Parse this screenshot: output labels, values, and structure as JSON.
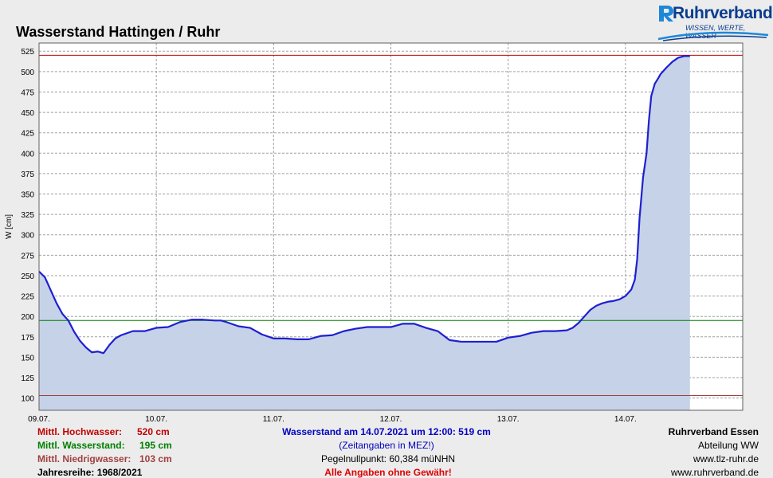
{
  "title": "Wasserstand Hattingen / Ruhr",
  "logo": {
    "name": "Ruhrverband",
    "tagline": "WISSEN, WERTE, WASSER"
  },
  "chart_data": {
    "type": "area",
    "ylabel": "W [cm]",
    "ylim": [
      85,
      535
    ],
    "yticks": [
      100,
      125,
      150,
      175,
      200,
      225,
      250,
      275,
      300,
      325,
      350,
      375,
      400,
      425,
      450,
      475,
      500,
      525
    ],
    "xlim": [
      0,
      6
    ],
    "xticks": [
      {
        "x": 0,
        "label": "09.07."
      },
      {
        "x": 1,
        "label": "10.07."
      },
      {
        "x": 2,
        "label": "11.07."
      },
      {
        "x": 3,
        "label": "12.07."
      },
      {
        "x": 4,
        "label": "13.07."
      },
      {
        "x": 5,
        "label": "14.07."
      }
    ],
    "grid": true,
    "reference_lines": [
      {
        "name": "Mittl. Hochwasser",
        "value": 520,
        "color": "#c00000"
      },
      {
        "name": "Mittl. Wasserstand",
        "value": 195,
        "color": "#008000"
      },
      {
        "name": "Mittl. Niedrigwasser",
        "value": 103,
        "color": "#a04040"
      }
    ],
    "series": [
      {
        "color": "#1f1fd0",
        "fill": "#c5d2e8",
        "x": [
          0,
          0.05,
          0.1,
          0.15,
          0.2,
          0.25,
          0.3,
          0.35,
          0.4,
          0.45,
          0.5,
          0.55,
          0.6,
          0.65,
          0.7,
          0.8,
          0.9,
          1.0,
          1.1,
          1.2,
          1.3,
          1.4,
          1.5,
          1.55,
          1.6,
          1.7,
          1.8,
          1.9,
          2.0,
          2.1,
          2.2,
          2.3,
          2.4,
          2.5,
          2.6,
          2.7,
          2.8,
          2.9,
          3.0,
          3.1,
          3.2,
          3.3,
          3.4,
          3.5,
          3.6,
          3.7,
          3.8,
          3.9,
          4.0,
          4.1,
          4.2,
          4.3,
          4.4,
          4.5,
          4.55,
          4.6,
          4.65,
          4.7,
          4.75,
          4.8,
          4.85,
          4.9,
          4.95,
          5.0,
          5.05,
          5.08,
          5.1,
          5.12,
          5.15,
          5.18,
          5.2,
          5.22,
          5.25,
          5.28,
          5.3,
          5.35,
          5.4,
          5.45,
          5.5,
          5.55
        ],
        "values": [
          255,
          248,
          232,
          216,
          203,
          195,
          181,
          170,
          162,
          156,
          157,
          155,
          165,
          173,
          177,
          182,
          182,
          186,
          187,
          193,
          196,
          196,
          195,
          195,
          193,
          188,
          186,
          178,
          173,
          173,
          172,
          172,
          176,
          177,
          182,
          185,
          187,
          187,
          187,
          191,
          191,
          186,
          182,
          171,
          169,
          169,
          169,
          169,
          174,
          176,
          180,
          182,
          182,
          183,
          186,
          192,
          200,
          208,
          213,
          216,
          218,
          219,
          221,
          225,
          233,
          245,
          270,
          320,
          370,
          400,
          440,
          470,
          485,
          492,
          497,
          505,
          512,
          517,
          519,
          519
        ]
      }
    ]
  },
  "info_left": [
    {
      "label": "Mittl. Hochwasser:",
      "value": "520 cm"
    },
    {
      "label": "Mittl. Wasserstand:",
      "value": "195 cm"
    },
    {
      "label": "Mittl. Niedrigwasser:",
      "value": "103 cm"
    },
    {
      "label": "Jahresreihe: 1968/2021"
    }
  ],
  "info_center": {
    "current": "Wasserstand am 14.07.2021 um 12:00: 519 cm",
    "timezone": "(Zeitangaben in MEZ!)",
    "gauge_zero": "Pegelnullpunkt:   60,384 müNHN",
    "disclaimer": "Alle Angaben ohne Gewähr!"
  },
  "info_right": {
    "org": "Ruhrverband Essen",
    "dept": "Abteilung WW",
    "url1": "www.tlz-ruhr.de",
    "url2": "www.ruhrverband.de"
  }
}
